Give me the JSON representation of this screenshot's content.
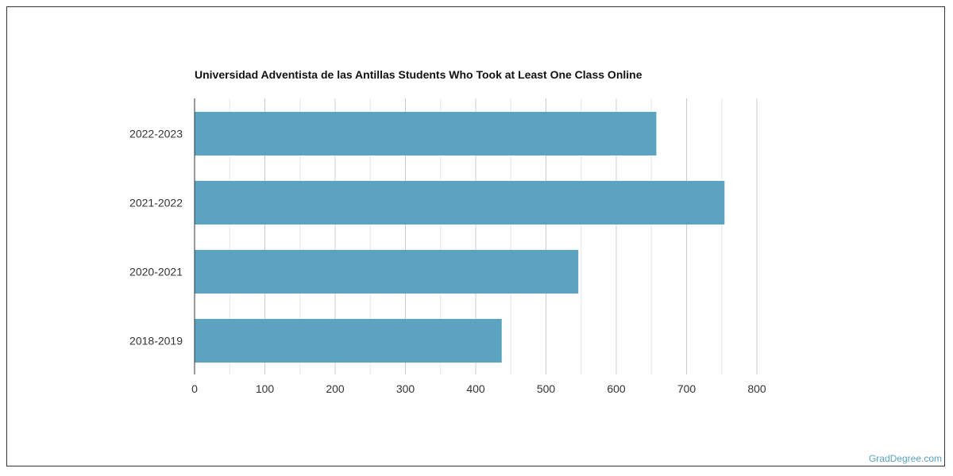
{
  "chart_data": {
    "type": "bar",
    "orientation": "horizontal",
    "title": "Universidad Adventista de las Antillas Students Who Took at Least One Class Online",
    "categories": [
      "2022-2023",
      "2021-2022",
      "2020-2021",
      "2018-2019"
    ],
    "values": [
      657,
      754,
      546,
      437
    ],
    "xlim": [
      0,
      800
    ],
    "x_ticks": [
      0,
      100,
      200,
      300,
      400,
      500,
      600,
      700,
      800
    ],
    "x_tick_labels": [
      "0",
      "100",
      "200",
      "300",
      "400",
      "500",
      "600",
      "700",
      "800"
    ],
    "xlabel": "",
    "ylabel": "",
    "grid": true,
    "bar_color": "#5ba3c0"
  },
  "watermark": "GradDegree.com"
}
